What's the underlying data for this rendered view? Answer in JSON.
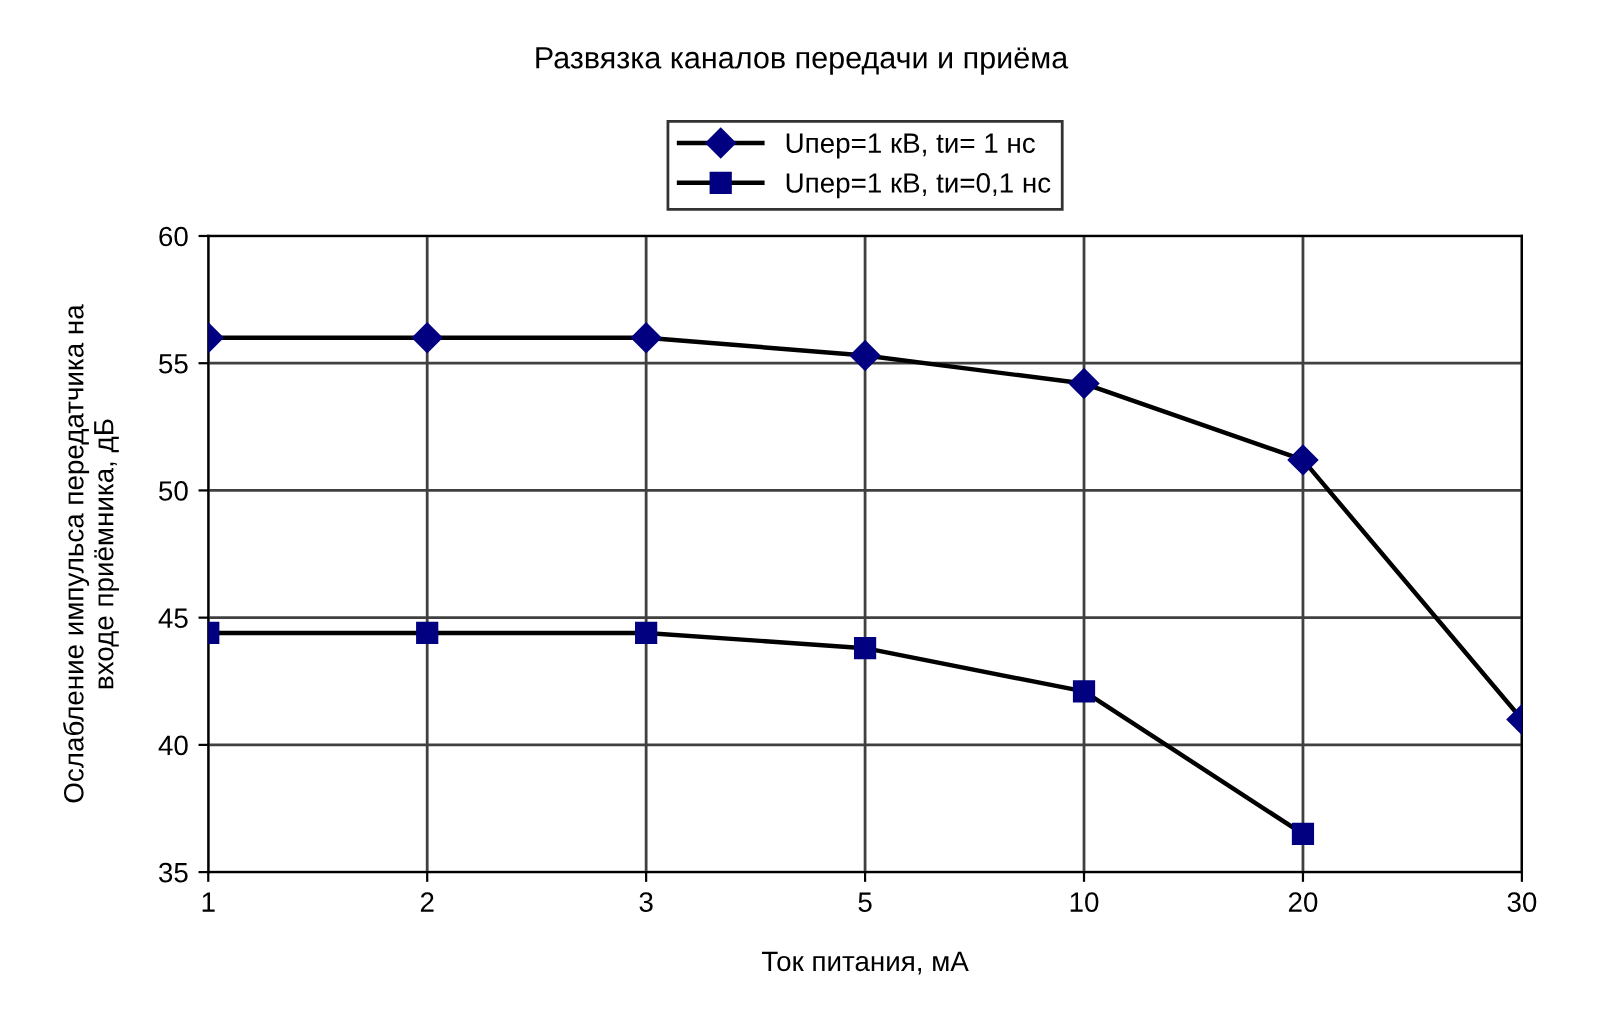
{
  "chart_data": {
    "type": "line",
    "title": "Развязка каналов передачи и приёма",
    "xlabel": "Ток питания, мА",
    "ylabel": "Ослабление импульса передатчика на\nвходе приёмника, дБ",
    "categories": [
      "1",
      "2",
      "3",
      "5",
      "10",
      "20",
      "30"
    ],
    "series": [
      {
        "name": "Uпер=1 кВ, tи= 1 нс",
        "color": "#000080",
        "marker": "diamond",
        "values": [
          56,
          56,
          56,
          55.3,
          54.2,
          51.2,
          41
        ]
      },
      {
        "name": "Uпер=1 кВ, tи=0,1 нс",
        "color": "#000080",
        "marker": "square",
        "values": [
          44.4,
          44.4,
          44.4,
          43.8,
          42.1,
          36.5,
          null
        ]
      }
    ],
    "ylim": [
      35,
      60
    ],
    "yticks": [
      35,
      40,
      45,
      50,
      55,
      60
    ],
    "grid": true,
    "legend": "top"
  }
}
